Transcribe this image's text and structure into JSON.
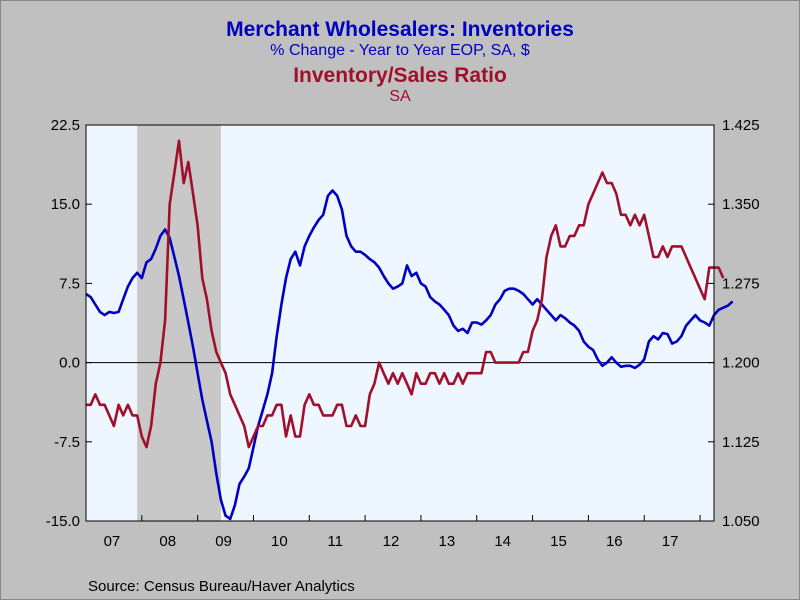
{
  "titles": {
    "line1": "Merchant Wholesalers: Inventories",
    "line2": "% Change - Year to Year     EOP, SA, $",
    "line3": "Inventory/Sales Ratio",
    "line4": "SA"
  },
  "source": "Source:  Census Bureau/Haver Analytics",
  "colors": {
    "series_inventories": "#0000c0",
    "series_ratio": "#a0102a",
    "plot_background": "#eef6ff",
    "recession_shade": "#c8c8c8",
    "frame_background": "#c0c0c0"
  },
  "chart_data": {
    "type": "line",
    "x_start": "2007-01",
    "x_end": "2017-12",
    "frequency": "monthly",
    "x_tick_labels": [
      "07",
      "08",
      "09",
      "10",
      "11",
      "12",
      "13",
      "14",
      "15",
      "16",
      "17"
    ],
    "y_left": {
      "ylim": [
        -15.0,
        22.5
      ],
      "ticks": [
        "22.5",
        "15.0",
        "7.5",
        "0.0",
        "-7.5",
        "-15.0"
      ]
    },
    "y_right": {
      "ylim": [
        1.05,
        1.425
      ],
      "ticks": [
        "1.425",
        "1.350",
        "1.275",
        "1.200",
        "1.125",
        "1.050"
      ]
    },
    "grid": false,
    "legend": "none",
    "shaded_periods": [
      {
        "start": "2007-12",
        "end": "2009-06"
      }
    ],
    "series": [
      {
        "name": "Merchant Wholesalers: Inventories",
        "axis": "left",
        "values": [
          6.5,
          6.2,
          5.5,
          4.8,
          4.5,
          4.8,
          4.7,
          4.8,
          6.0,
          7.2,
          8.0,
          8.5,
          8.0,
          9.5,
          9.8,
          10.8,
          12.0,
          12.6,
          11.8,
          10.0,
          8.2,
          6.0,
          3.8,
          1.5,
          -1.0,
          -3.5,
          -5.5,
          -7.5,
          -10.5,
          -13.0,
          -14.5,
          -14.8,
          -13.5,
          -11.5,
          -10.8,
          -10.0,
          -8.0,
          -6.0,
          -4.5,
          -3.0,
          -1.0,
          2.5,
          5.5,
          8.0,
          9.8,
          10.5,
          9.2,
          11.0,
          12.0,
          12.8,
          13.5,
          14.0,
          15.8,
          16.3,
          15.8,
          14.5,
          12.0,
          11.0,
          10.5,
          10.5,
          10.2,
          9.8,
          9.5,
          9.0,
          8.2,
          7.5,
          7.0,
          7.2,
          7.5,
          9.2,
          8.2,
          8.5,
          7.5,
          7.2,
          6.2,
          5.8,
          5.5,
          5.0,
          4.5,
          3.5,
          3.0,
          3.2,
          2.8,
          3.8,
          3.8,
          3.6,
          4.0,
          4.5,
          5.5,
          6.0,
          6.8,
          7.0,
          7.0,
          6.8,
          6.5,
          6.0,
          5.5,
          6.0,
          5.5,
          5.0,
          4.5,
          4.0,
          4.5,
          4.2,
          3.8,
          3.5,
          3.0,
          2.0,
          1.5,
          1.2,
          0.3,
          -0.3,
          0.0,
          0.5,
          0.0,
          -0.4,
          -0.3,
          -0.3,
          -0.5,
          -0.2,
          0.3,
          2.0,
          2.5,
          2.2,
          2.8,
          2.7,
          1.8,
          2.0,
          2.5,
          3.5,
          4.0,
          4.5,
          4.0,
          3.8,
          3.5,
          4.5,
          5.0,
          5.2,
          5.4,
          5.8
        ]
      },
      {
        "name": "Inventory/Sales Ratio",
        "axis": "right",
        "values": [
          1.16,
          1.16,
          1.17,
          1.16,
          1.16,
          1.15,
          1.14,
          1.16,
          1.15,
          1.16,
          1.15,
          1.15,
          1.13,
          1.12,
          1.14,
          1.18,
          1.2,
          1.24,
          1.35,
          1.38,
          1.41,
          1.37,
          1.39,
          1.36,
          1.33,
          1.28,
          1.26,
          1.23,
          1.21,
          1.2,
          1.19,
          1.17,
          1.16,
          1.15,
          1.14,
          1.12,
          1.13,
          1.14,
          1.14,
          1.15,
          1.15,
          1.16,
          1.16,
          1.13,
          1.15,
          1.13,
          1.13,
          1.16,
          1.17,
          1.16,
          1.16,
          1.15,
          1.15,
          1.15,
          1.16,
          1.16,
          1.14,
          1.14,
          1.15,
          1.14,
          1.14,
          1.17,
          1.18,
          1.2,
          1.19,
          1.18,
          1.19,
          1.18,
          1.19,
          1.18,
          1.17,
          1.19,
          1.18,
          1.18,
          1.19,
          1.19,
          1.18,
          1.19,
          1.18,
          1.18,
          1.19,
          1.18,
          1.19,
          1.19,
          1.19,
          1.19,
          1.21,
          1.21,
          1.2,
          1.2,
          1.2,
          1.2,
          1.2,
          1.2,
          1.21,
          1.21,
          1.23,
          1.24,
          1.26,
          1.3,
          1.32,
          1.33,
          1.31,
          1.31,
          1.32,
          1.32,
          1.33,
          1.33,
          1.35,
          1.36,
          1.37,
          1.38,
          1.37,
          1.37,
          1.36,
          1.34,
          1.34,
          1.33,
          1.34,
          1.33,
          1.34,
          1.32,
          1.3,
          1.3,
          1.31,
          1.3,
          1.31,
          1.31,
          1.31,
          1.3,
          1.29,
          1.28,
          1.27,
          1.26,
          1.29,
          1.29,
          1.29,
          1.28
        ]
      }
    ]
  }
}
